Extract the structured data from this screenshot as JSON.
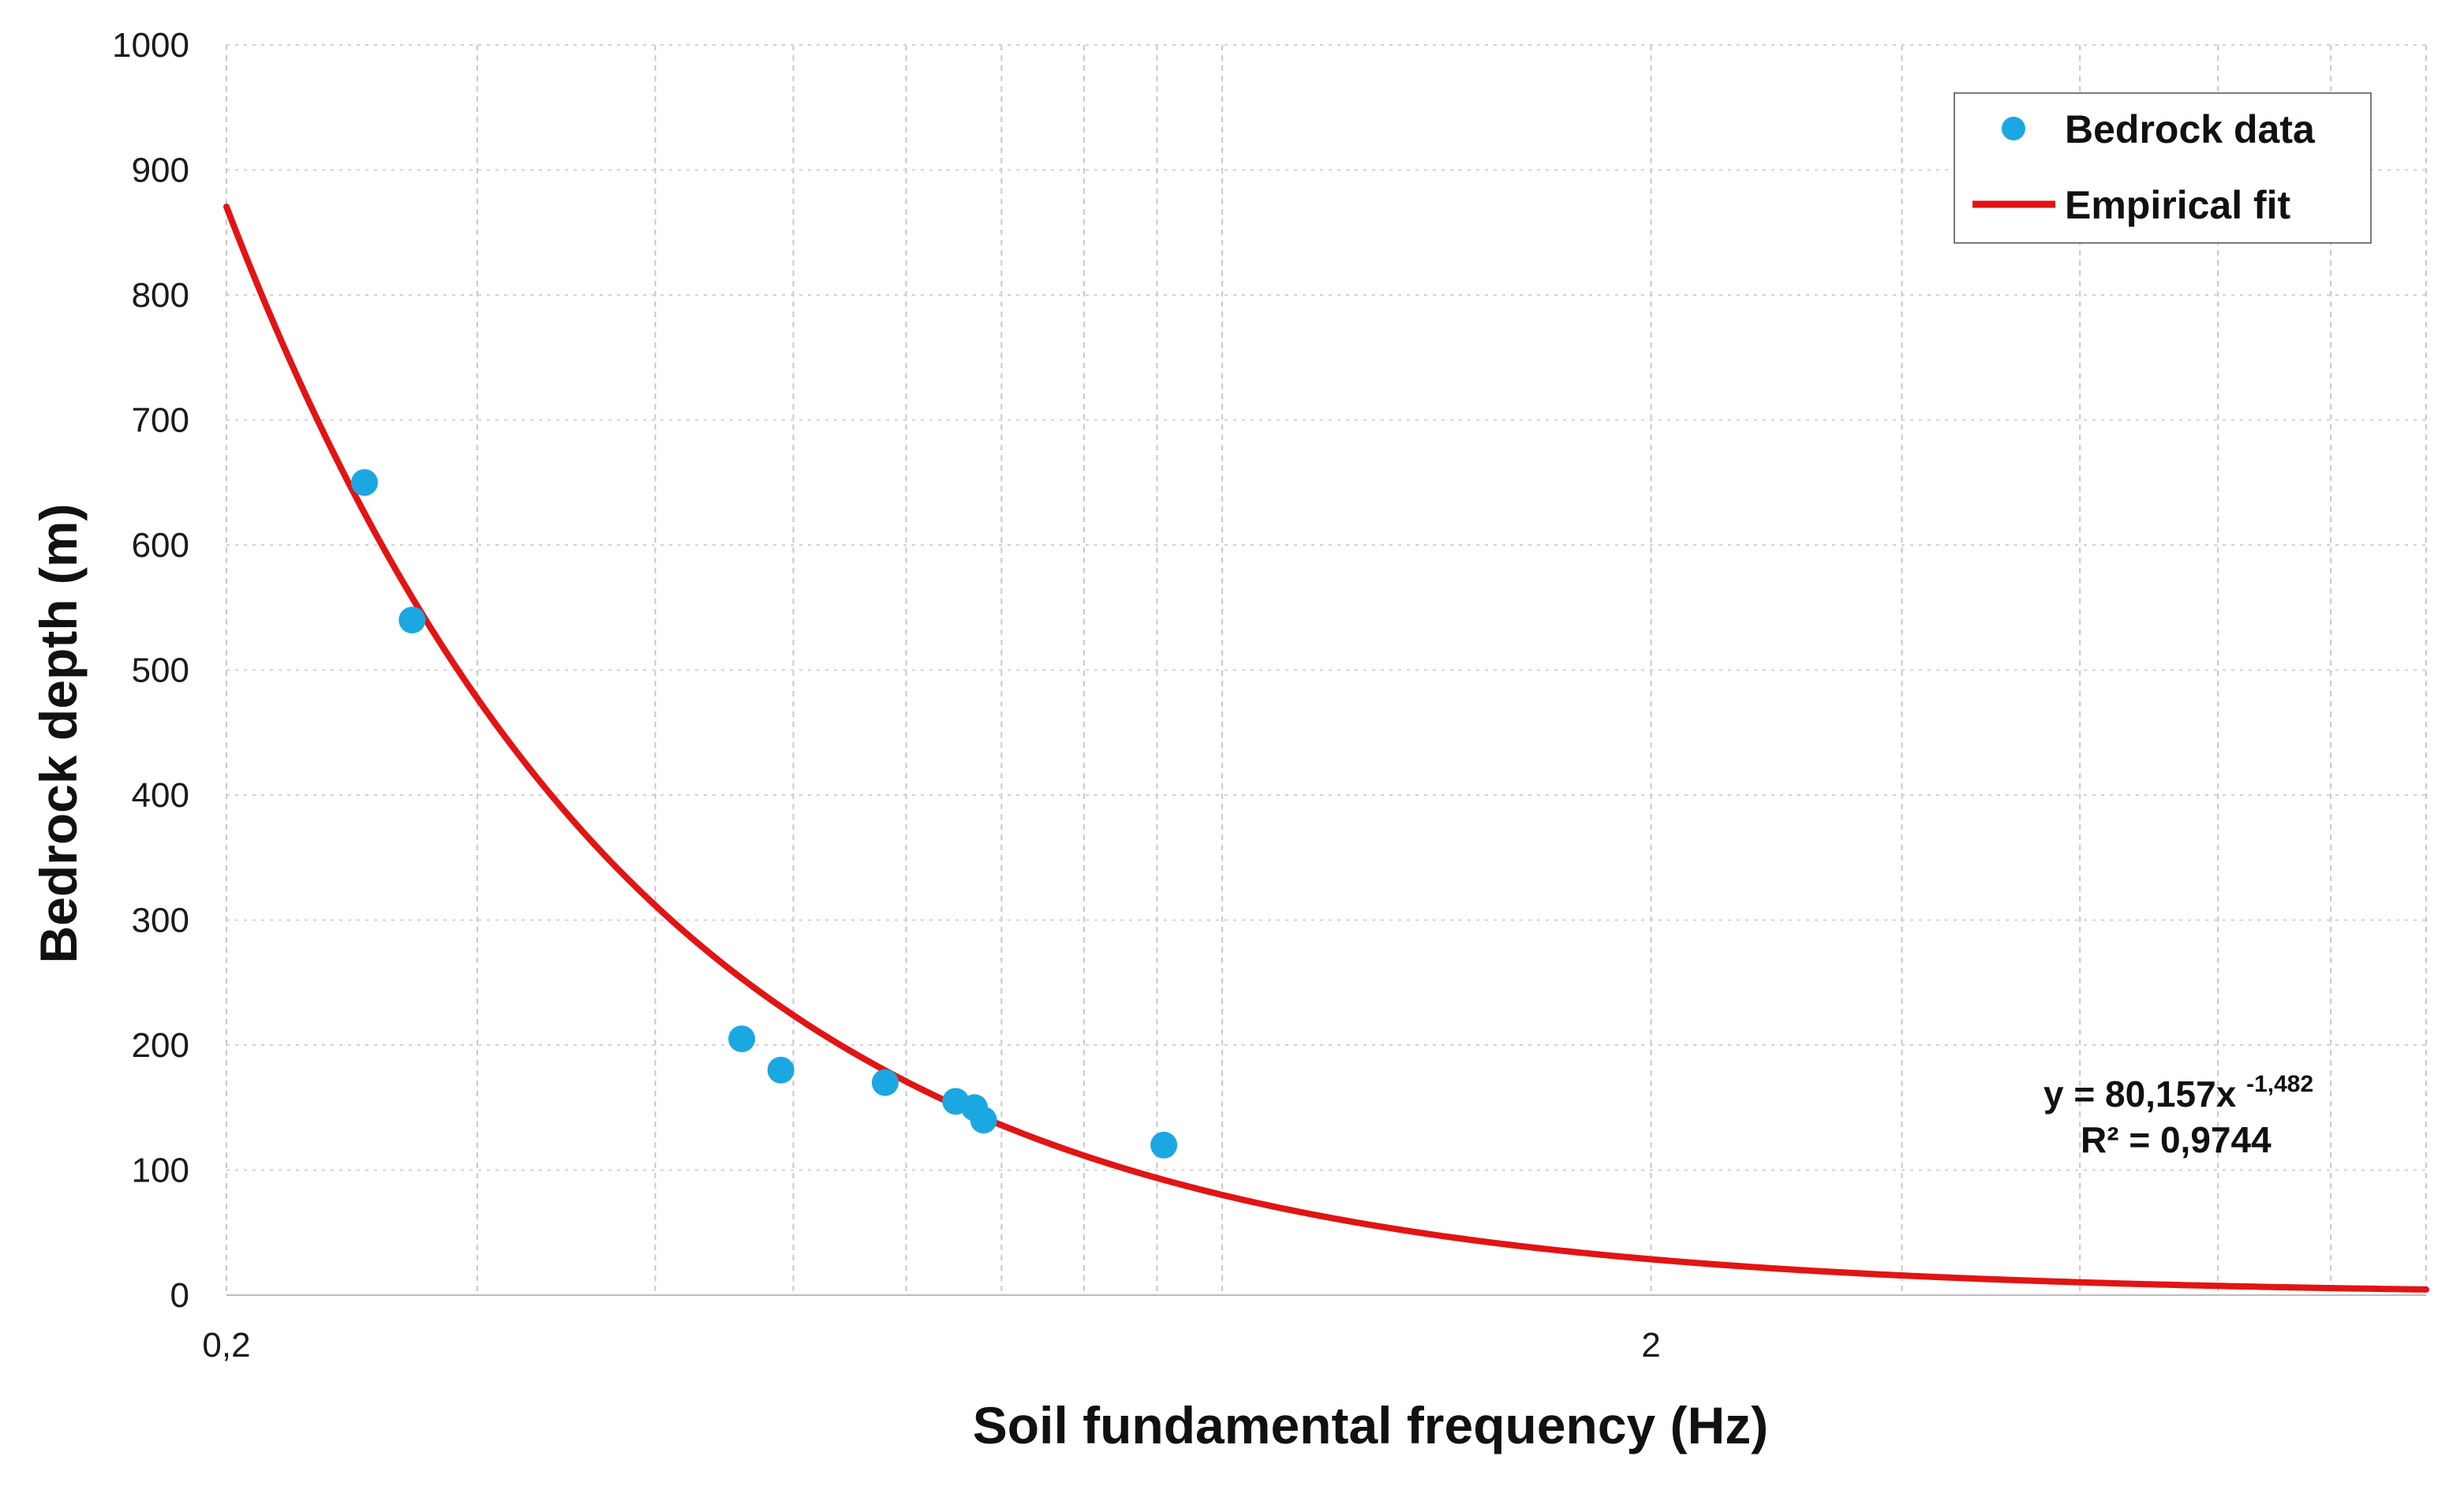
{
  "chart_data": {
    "type": "scatter",
    "xlabel": "Soil fundamental frequency (Hz)",
    "ylabel": "Bedrock depth (m)",
    "x_scale": "log",
    "xlim": [
      0.2,
      7
    ],
    "ylim": [
      0,
      1000
    ],
    "grid": true,
    "legend_position": "top-right",
    "x_ticks": [
      {
        "value": 0.2,
        "label": "0,2"
      },
      {
        "value": 2,
        "label": "2"
      }
    ],
    "y_ticks": [
      {
        "value": 0,
        "label": "0"
      },
      {
        "value": 100,
        "label": "100"
      },
      {
        "value": 200,
        "label": "200"
      },
      {
        "value": 300,
        "label": "300"
      },
      {
        "value": 400,
        "label": "400"
      },
      {
        "value": 500,
        "label": "500"
      },
      {
        "value": 600,
        "label": "600"
      },
      {
        "value": 700,
        "label": "700"
      },
      {
        "value": 800,
        "label": "800"
      },
      {
        "value": 900,
        "label": "900"
      },
      {
        "value": 1000,
        "label": "1000"
      }
    ],
    "series": [
      {
        "name": "Bedrock data",
        "kind": "scatter",
        "color": "#1ba7e1",
        "points": [
          {
            "x": 0.25,
            "y": 650
          },
          {
            "x": 0.27,
            "y": 540
          },
          {
            "x": 0.46,
            "y": 205
          },
          {
            "x": 0.49,
            "y": 180
          },
          {
            "x": 0.58,
            "y": 170
          },
          {
            "x": 0.65,
            "y": 155
          },
          {
            "x": 0.67,
            "y": 150
          },
          {
            "x": 0.68,
            "y": 140
          },
          {
            "x": 0.91,
            "y": 120
          }
        ]
      },
      {
        "name": "Empirical fit",
        "kind": "line",
        "color": "#e21414",
        "model": {
          "a": 80.157,
          "b": -1.482
        }
      }
    ],
    "annotation": {
      "equation_prefix": "y = 80,157x",
      "equation_exponent": "-1,482",
      "r_squared": "R² = 0,9744"
    }
  }
}
